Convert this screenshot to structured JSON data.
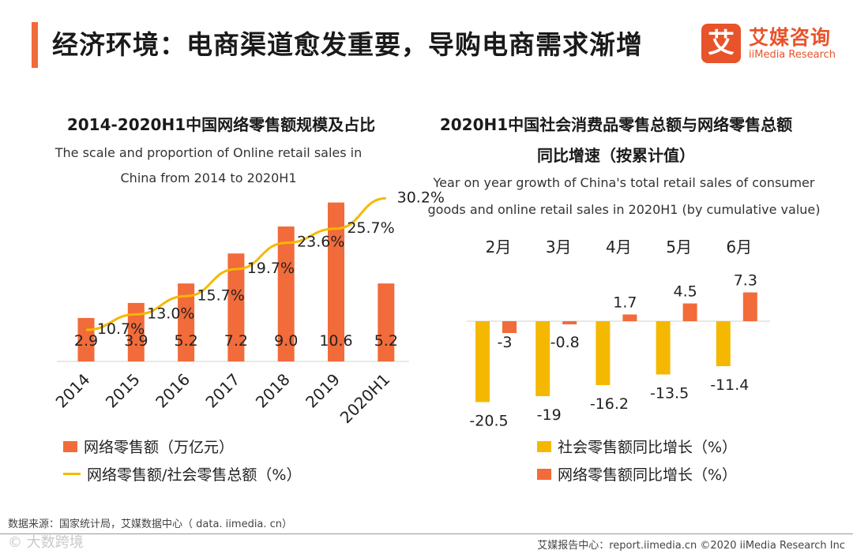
{
  "header": {
    "title": "经济环境：电商渠道愈发重要，导购电商需求渐增",
    "logo_cn": "艾媒咨询",
    "logo_en": "iiMedia Research",
    "logo_mark": "艾"
  },
  "colors": {
    "accent": "#f26b3a",
    "online": "#f26b3a",
    "line": "#f5b800",
    "social": "#f5b800"
  },
  "left": {
    "title": "2014-2020H1中国网络零售额规模及占比",
    "subtitle_1": "The scale and proportion of Online retail sales in",
    "subtitle_2": "China from 2014 to 2020H1",
    "legend_bar": "网络零售额（万亿元）",
    "legend_line": "网络零售额/社会零售总额（%）"
  },
  "right": {
    "title_1": "2020H1中国社会消费品零售总额与网络零售总额",
    "title_2": "同比增速（按累计值）",
    "subtitle_1": "Year on year growth of China's total retail sales of consumer",
    "subtitle_2": "goods and online retail sales in 2020H1 (by cumulative value)",
    "legend_social": "社会零售额同比增长（%）",
    "legend_online": "网络零售额同比增长（%）"
  },
  "chart_data": [
    {
      "type": "bar",
      "categories": [
        "2014",
        "2015",
        "2016",
        "2017",
        "2018",
        "2019",
        "2020H1"
      ],
      "series": [
        {
          "name": "网络零售额（万亿元）",
          "type": "bar",
          "values": [
            2.9,
            3.9,
            5.2,
            7.2,
            9.0,
            10.6,
            5.2
          ],
          "labels": [
            "2.9",
            "3.9",
            "5.2",
            "7.2",
            "9.0",
            "10.6",
            "5.2"
          ]
        },
        {
          "name": "网络零售额/社会零售总额（%）",
          "type": "line",
          "values": [
            10.7,
            13.0,
            15.7,
            19.7,
            23.6,
            25.7,
            30.2
          ],
          "labels": [
            "10.7%",
            "13.0%",
            "15.7%",
            "19.7%",
            "23.6%",
            "25.7%",
            "30.2%"
          ]
        }
      ]
    },
    {
      "type": "bar",
      "categories": [
        "2月",
        "3月",
        "4月",
        "5月",
        "6月"
      ],
      "series": [
        {
          "name": "社会零售额同比增长（%）",
          "values": [
            -20.5,
            -19,
            -16.2,
            -13.5,
            -11.4
          ],
          "labels": [
            "-20.5",
            "-19",
            "-16.2",
            "-13.5",
            "-11.4"
          ]
        },
        {
          "name": "网络零售额同比增长（%）",
          "values": [
            -3,
            -0.8,
            1.7,
            4.5,
            7.3
          ],
          "labels": [
            "-3",
            "-0.8",
            "1.7",
            "4.5",
            "7.3"
          ]
        }
      ]
    }
  ],
  "footer": {
    "source": "数据来源：国家统计局，艾媒数据中心（ data. iimedia. cn）",
    "watermark": "© 大数跨境",
    "right": "艾媒报告中心：report.iimedia.cn   ©2020  iiMedia Research  Inc"
  }
}
